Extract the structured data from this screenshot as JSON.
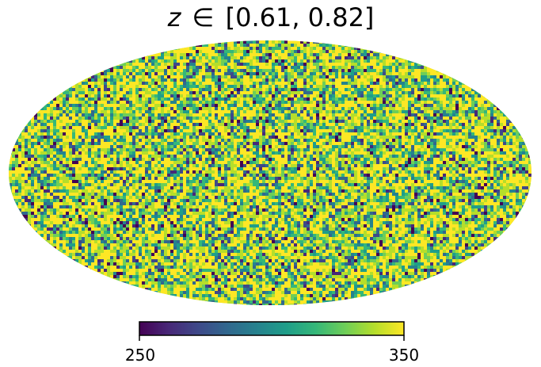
{
  "chart_data": {
    "type": "heatmap",
    "projection": "mollweide",
    "title": {
      "variable": "z",
      "relation": "∈",
      "range_text": "[0.61, 0.82]"
    },
    "value_range": [
      250,
      350
    ],
    "colormap": "viridis",
    "colorbar": {
      "orientation": "horizontal",
      "placement": "bottom",
      "tick_labels": [
        "250",
        "350"
      ],
      "tick_values": [
        250,
        350
      ]
    },
    "texture": "noise-like random field, values mostly near the upper end of the range",
    "grid": false,
    "legend": "none"
  },
  "colors": {
    "viridis_stops": [
      "#440154",
      "#482878",
      "#3e4989",
      "#31688e",
      "#26828e",
      "#1f9e89",
      "#35b779",
      "#6ece58",
      "#b5de2b",
      "#fde725"
    ]
  }
}
